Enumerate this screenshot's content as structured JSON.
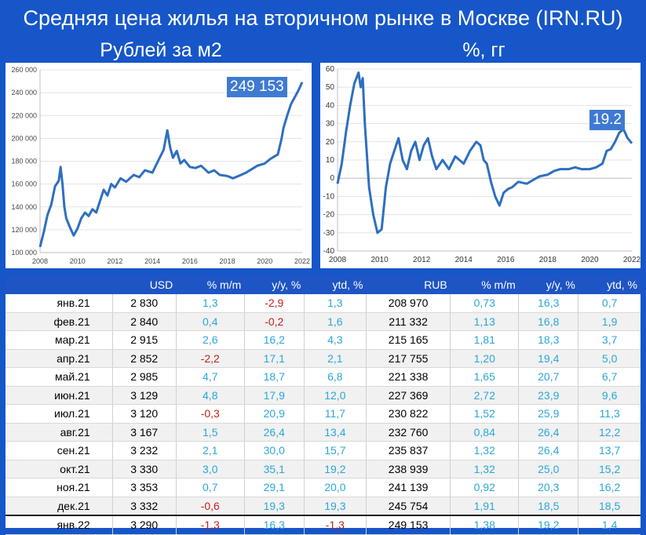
{
  "title": "Средняя цена жилья на вторичном рынке в Москве (IRN.RU)",
  "subtitle_left": "Рублей за м2",
  "subtitle_right": "%, гг",
  "chart_data": [
    {
      "type": "line",
      "title": "Рублей за м2",
      "callout": "249 153",
      "x_ticks": [
        "2008",
        "2010",
        "2012",
        "2014",
        "2016",
        "2018",
        "2020",
        "2022"
      ],
      "y_ticks": [
        "100 000",
        "120 000",
        "140 000",
        "160 000",
        "180 000",
        "200 000",
        "220 000",
        "240 000",
        "260 000"
      ],
      "ylim": [
        100000,
        260000
      ],
      "xlim": [
        2008,
        2022
      ],
      "grid": "horizontal",
      "color": "#2e6fbf",
      "series": [
        {
          "x": [
            2008.0,
            2008.2,
            2008.4,
            2008.6,
            2008.8,
            2009.0,
            2009.1,
            2009.2,
            2009.3,
            2009.4,
            2009.6,
            2009.8,
            2010.0,
            2010.2,
            2010.4,
            2010.6,
            2010.8,
            2011.0,
            2011.2,
            2011.4,
            2011.6,
            2011.8,
            2012.0,
            2012.3,
            2012.6,
            2013.0,
            2013.3,
            2013.6,
            2014.0,
            2014.3,
            2014.6,
            2014.8,
            2014.95,
            2015.1,
            2015.3,
            2015.5,
            2015.7,
            2016.0,
            2016.3,
            2016.6,
            2017.0,
            2017.3,
            2017.6,
            2018.0,
            2018.3,
            2018.6,
            2019.0,
            2019.3,
            2019.6,
            2020.0,
            2020.3,
            2020.5,
            2020.7,
            2020.9,
            2021.0,
            2021.2,
            2021.4,
            2021.6,
            2021.8,
            2022.0
          ],
          "y": [
            105000,
            118000,
            133000,
            142000,
            158000,
            163000,
            175000,
            160000,
            140000,
            130000,
            122000,
            115000,
            121000,
            130000,
            135000,
            132000,
            138000,
            135000,
            145000,
            155000,
            150000,
            160000,
            157000,
            165000,
            162000,
            168000,
            166000,
            172000,
            170000,
            180000,
            190000,
            207000,
            192000,
            183000,
            189000,
            178000,
            181000,
            175000,
            174000,
            176000,
            170000,
            172000,
            168000,
            167000,
            165000,
            167000,
            170000,
            173000,
            176000,
            178000,
            182000,
            184000,
            186000,
            200000,
            209000,
            220000,
            230000,
            236000,
            242000,
            249153
          ]
        }
      ]
    },
    {
      "type": "line",
      "title": "%, гг",
      "callout": "19.2",
      "x_ticks": [
        "2008",
        "2010",
        "2012",
        "2014",
        "2016",
        "2018",
        "2020",
        "2022"
      ],
      "y_ticks": [
        "-40",
        "-30",
        "-20",
        "-10",
        "0",
        "10",
        "20",
        "30",
        "40",
        "50",
        "60"
      ],
      "ylim": [
        -40,
        60
      ],
      "xlim": [
        2008,
        2022
      ],
      "grid": "horizontal",
      "color": "#2e6fbf",
      "series": [
        {
          "x": [
            2008.0,
            2008.2,
            2008.4,
            2008.6,
            2008.8,
            2009.0,
            2009.1,
            2009.2,
            2009.3,
            2009.5,
            2009.7,
            2009.9,
            2010.1,
            2010.3,
            2010.5,
            2010.7,
            2010.9,
            2011.1,
            2011.3,
            2011.5,
            2011.7,
            2011.9,
            2012.1,
            2012.3,
            2012.5,
            2012.7,
            2013.0,
            2013.3,
            2013.6,
            2014.0,
            2014.3,
            2014.6,
            2014.8,
            2014.95,
            2015.1,
            2015.3,
            2015.5,
            2015.7,
            2015.9,
            2016.1,
            2016.3,
            2016.6,
            2017.0,
            2017.3,
            2017.6,
            2018.0,
            2018.3,
            2018.6,
            2019.0,
            2019.3,
            2019.6,
            2020.0,
            2020.3,
            2020.6,
            2020.8,
            2021.0,
            2021.2,
            2021.4,
            2021.6,
            2021.8,
            2022.0
          ],
          "y": [
            -3,
            8,
            25,
            40,
            52,
            58,
            50,
            55,
            30,
            -5,
            -20,
            -30,
            -28,
            -5,
            8,
            15,
            22,
            10,
            5,
            15,
            20,
            10,
            18,
            22,
            12,
            5,
            10,
            5,
            12,
            8,
            15,
            20,
            18,
            10,
            8,
            -2,
            -10,
            -15,
            -8,
            -6,
            -5,
            -2,
            -3,
            -1,
            1,
            2,
            4,
            5,
            5,
            6,
            5,
            5,
            6,
            8,
            15,
            16,
            20,
            25,
            27,
            22,
            19.2
          ]
        }
      ]
    }
  ],
  "table": {
    "headers": [
      "",
      "USD",
      "% m/m",
      "y/y, %",
      "ytd, %",
      "RUB",
      "% m/m",
      "y/y, %",
      "ytd, %"
    ],
    "rows": [
      [
        "янв.21",
        "2 830",
        "1,3",
        "-2,9",
        "1,3",
        "208 970",
        "0,73",
        "16,3",
        "0,7"
      ],
      [
        "фев.21",
        "2 840",
        "0,4",
        "-0,2",
        "1,6",
        "211 332",
        "1,13",
        "16,8",
        "1,9"
      ],
      [
        "мар.21",
        "2 915",
        "2,6",
        "16,2",
        "4,3",
        "215 165",
        "1,81",
        "18,3",
        "3,7"
      ],
      [
        "апр.21",
        "2 852",
        "-2,2",
        "17,1",
        "2,1",
        "217 755",
        "1,20",
        "19,4",
        "5,0"
      ],
      [
        "май.21",
        "2 985",
        "4,7",
        "18,7",
        "6,8",
        "221 338",
        "1,65",
        "20,7",
        "6,7"
      ],
      [
        "июн.21",
        "3 129",
        "4,8",
        "17,9",
        "12,0",
        "227 369",
        "2,72",
        "23,9",
        "9,6"
      ],
      [
        "июл.21",
        "3 120",
        "-0,3",
        "20,9",
        "11,7",
        "230 822",
        "1,52",
        "25,9",
        "11,3"
      ],
      [
        "авг.21",
        "3 167",
        "1,5",
        "26,4",
        "13,4",
        "232 760",
        "0,84",
        "26,4",
        "12,2"
      ],
      [
        "сен.21",
        "3 232",
        "2,1",
        "30,0",
        "15,7",
        "235 837",
        "1,32",
        "26,4",
        "13,7"
      ],
      [
        "окт.21",
        "3 330",
        "3,0",
        "35,1",
        "19,2",
        "238 939",
        "1,32",
        "25,0",
        "15,2"
      ],
      [
        "ноя.21",
        "3 353",
        "0,7",
        "29,1",
        "20,0",
        "241 139",
        "0,92",
        "20,3",
        "16,2"
      ],
      [
        "дек.21",
        "3 332",
        "-0,6",
        "19,3",
        "19,3",
        "245 754",
        "1,91",
        "18,5",
        "18,5"
      ],
      [
        "янв.22",
        "3 290",
        "-1,3",
        "16,3",
        "-1,3",
        "249 153",
        "1,38",
        "19,2",
        "1,4"
      ]
    ]
  }
}
